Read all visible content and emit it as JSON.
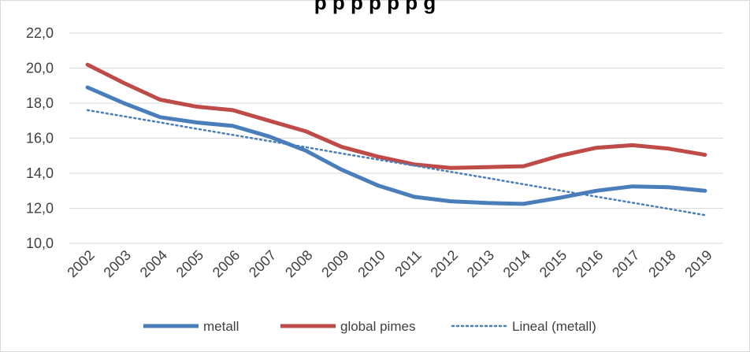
{
  "chart_data": {
    "type": "line",
    "title": "",
    "xlabel": "",
    "ylabel": "",
    "categories": [
      "2002",
      "2003",
      "2004",
      "2005",
      "2006",
      "2007",
      "2008",
      "2009",
      "2010",
      "2011",
      "2012",
      "2013",
      "2014",
      "2015",
      "2016",
      "2017",
      "2018",
      "2019"
    ],
    "series": [
      {
        "name": "metall",
        "color": "#4a7ebb",
        "style": "solid",
        "values": [
          18.9,
          18.0,
          17.2,
          16.9,
          16.7,
          16.1,
          15.3,
          14.2,
          13.3,
          12.65,
          12.4,
          12.3,
          12.25,
          12.6,
          13.0,
          13.25,
          13.2,
          13.0
        ]
      },
      {
        "name": "global pimes",
        "color": "#be4b48",
        "style": "solid",
        "values": [
          20.2,
          19.15,
          18.2,
          17.8,
          17.6,
          17.0,
          16.4,
          15.5,
          14.95,
          14.5,
          14.3,
          14.35,
          14.4,
          15.0,
          15.45,
          15.6,
          15.4,
          15.05
        ]
      },
      {
        "name": "Lineal (metall)",
        "color": "#4a7ebb",
        "style": "dotted",
        "values": [
          17.6,
          17.25,
          16.9,
          16.54,
          16.19,
          15.84,
          15.49,
          15.13,
          14.78,
          14.43,
          14.08,
          13.73,
          13.37,
          13.02,
          12.67,
          12.32,
          11.97,
          11.61
        ]
      }
    ],
    "ylim": [
      10.0,
      22.0
    ],
    "y_ticks": [
      "10,0",
      "12,0",
      "14,0",
      "16,0",
      "18,0",
      "20,0",
      "22,0"
    ],
    "y_tick_values": [
      10,
      12,
      14,
      16,
      18,
      20,
      22
    ],
    "grid": "horizontal",
    "legend_placement": "bottom"
  },
  "title_fragment": "p   p   p   p   p   p   g"
}
